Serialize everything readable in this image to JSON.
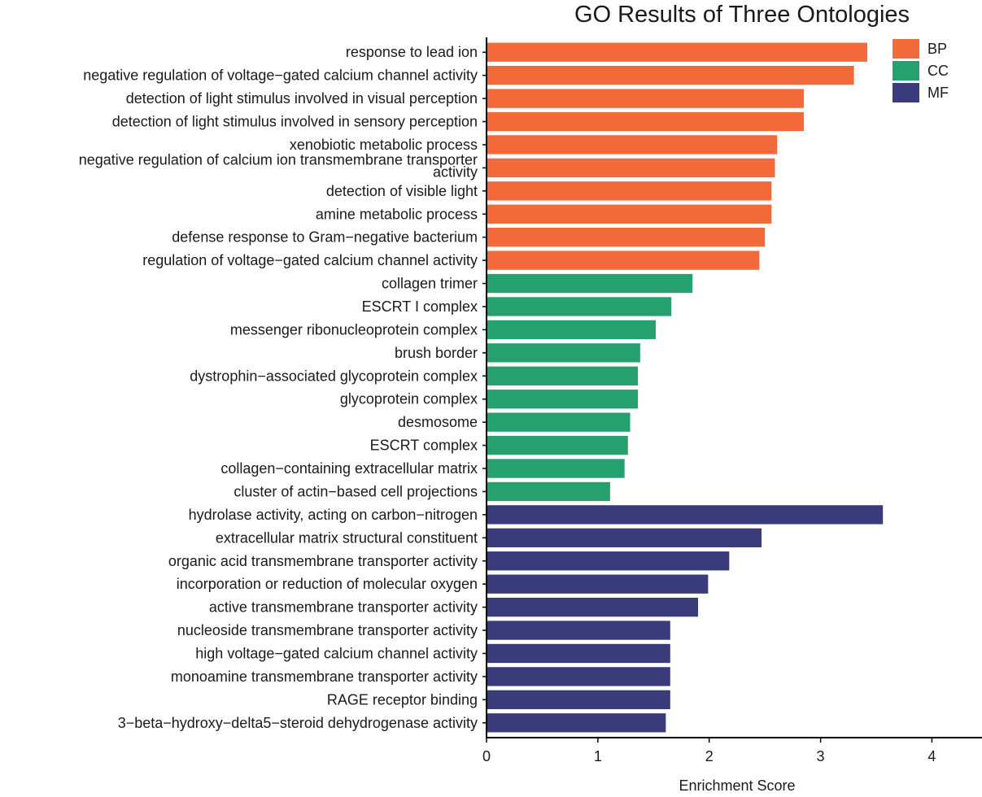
{
  "chart_data": {
    "type": "bar",
    "orientation": "horizontal",
    "title": "GO Results of Three Ontologies",
    "xlabel": "Enrichment Score",
    "ylabel": "",
    "xlim": [
      0,
      4.45
    ],
    "xticks": [
      0,
      1,
      2,
      3,
      4
    ],
    "grid": false,
    "legend_position": "top-right",
    "legend": [
      {
        "name": "BP",
        "color": "#f2693a"
      },
      {
        "name": "CC",
        "color": "#26a06e"
      },
      {
        "name": "MF",
        "color": "#393b7a"
      }
    ],
    "categories": [
      "response to lead ion",
      "negative regulation of voltage−gated calcium channel activity",
      "detection of light stimulus involved in visual perception",
      "detection of light stimulus involved in sensory perception",
      "xenobiotic metabolic process",
      "negative regulation of calcium ion transmembrane transporter activity",
      "detection of visible light",
      "amine metabolic process",
      "defense response to Gram−negative bacterium",
      "regulation of voltage−gated calcium channel activity",
      "collagen trimer",
      "ESCRT I complex",
      "messenger ribonucleoprotein complex",
      "brush border",
      "dystrophin−associated glycoprotein complex",
      "glycoprotein complex",
      "desmosome",
      "ESCRT complex",
      "collagen−containing extracellular matrix",
      "cluster of actin−based cell projections",
      "hydrolase activity, acting on carbon−nitrogen",
      "extracellular matrix structural constituent",
      "organic acid transmembrane transporter activity",
      "incorporation or reduction of molecular oxygen",
      "active transmembrane transporter activity",
      "nucleoside transmembrane transporter activity",
      "high voltage−gated calcium channel activity",
      "monoamine transmembrane transporter activity",
      "RAGE receptor binding",
      "3−beta−hydroxy−delta5−steroid dehydrogenase activity"
    ],
    "groups": [
      "BP",
      "BP",
      "BP",
      "BP",
      "BP",
      "BP",
      "BP",
      "BP",
      "BP",
      "BP",
      "CC",
      "CC",
      "CC",
      "CC",
      "CC",
      "CC",
      "CC",
      "CC",
      "CC",
      "CC",
      "MF",
      "MF",
      "MF",
      "MF",
      "MF",
      "MF",
      "MF",
      "MF",
      "MF",
      "MF"
    ],
    "values": [
      3.42,
      3.3,
      2.85,
      2.85,
      2.61,
      2.59,
      2.56,
      2.56,
      2.5,
      2.45,
      1.85,
      1.66,
      1.52,
      1.38,
      1.36,
      1.36,
      1.29,
      1.27,
      1.24,
      1.11,
      3.56,
      2.47,
      2.18,
      1.99,
      1.9,
      1.65,
      1.65,
      1.65,
      1.65,
      1.61
    ]
  }
}
